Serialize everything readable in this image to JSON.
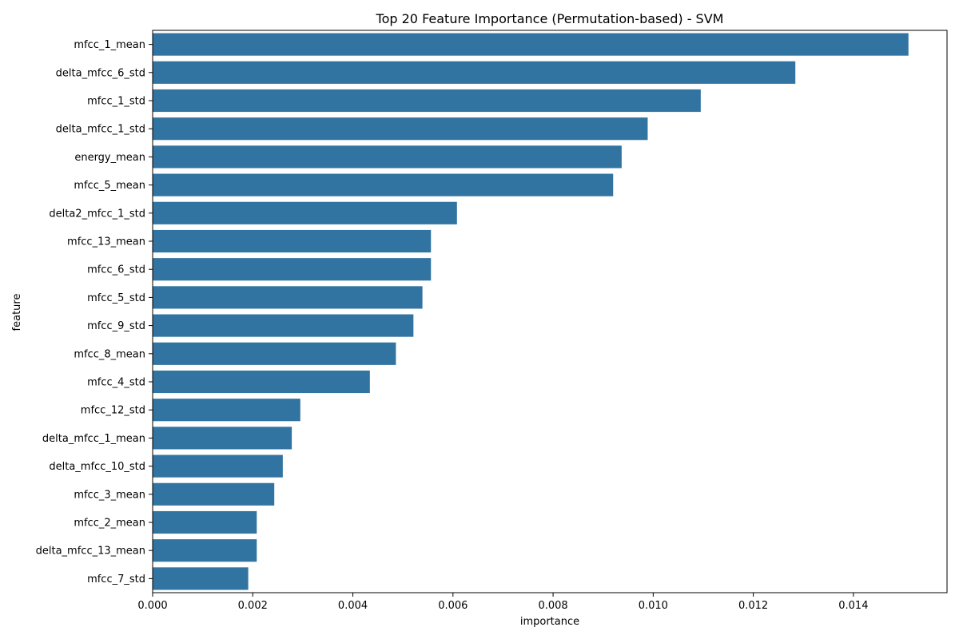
{
  "chart_data": {
    "type": "bar",
    "orientation": "horizontal",
    "title": "Top 20 Feature Importance (Permutation-based) - SVM",
    "xlabel": "importance",
    "ylabel": "feature",
    "xlim": [
      0,
      0.01587
    ],
    "xticks": [
      "0.000",
      "0.002",
      "0.004",
      "0.006",
      "0.008",
      "0.010",
      "0.012",
      "0.014"
    ],
    "bar_color": "#3274a1",
    "categories": [
      "mfcc_1_mean",
      "delta_mfcc_6_std",
      "mfcc_1_std",
      "delta_mfcc_1_std",
      "energy_mean",
      "mfcc_5_mean",
      "delta2_mfcc_1_std",
      "mfcc_13_mean",
      "mfcc_6_std",
      "mfcc_5_std",
      "mfcc_9_std",
      "mfcc_8_mean",
      "mfcc_4_std",
      "mfcc_12_std",
      "delta_mfcc_1_mean",
      "delta_mfcc_10_std",
      "mfcc_3_mean",
      "mfcc_2_mean",
      "delta_mfcc_13_mean",
      "mfcc_7_std"
    ],
    "values": [
      0.0151,
      0.01284,
      0.01095,
      0.00989,
      0.00937,
      0.0092,
      0.00608,
      0.00556,
      0.00556,
      0.00539,
      0.00521,
      0.00486,
      0.00434,
      0.00295,
      0.00278,
      0.0026,
      0.00243,
      0.00208,
      0.00208,
      0.00191
    ]
  }
}
